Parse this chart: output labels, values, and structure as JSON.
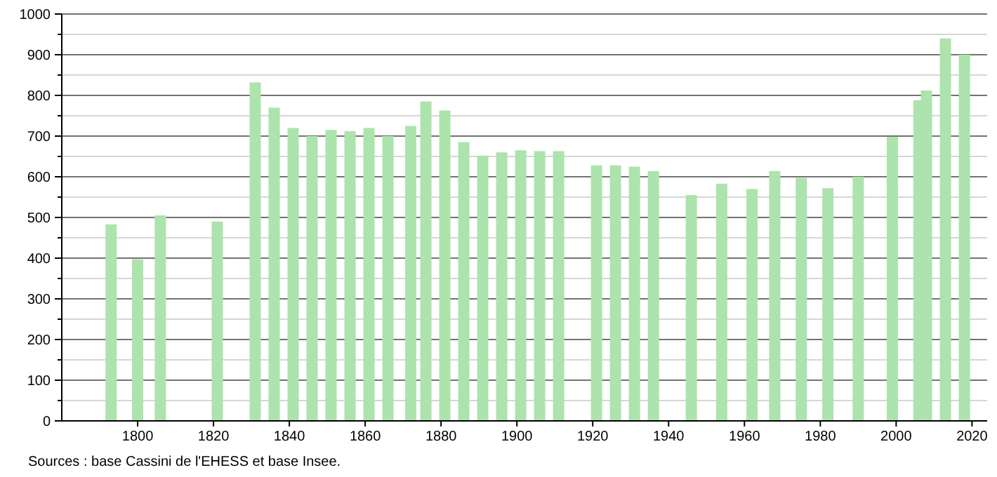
{
  "chart_data": {
    "type": "bar",
    "x": [
      1793,
      1800,
      1806,
      1821,
      1831,
      1836,
      1841,
      1846,
      1851,
      1856,
      1861,
      1866,
      1872,
      1876,
      1881,
      1886,
      1891,
      1896,
      1901,
      1906,
      1911,
      1921,
      1926,
      1931,
      1936,
      1946,
      1954,
      1962,
      1968,
      1975,
      1982,
      1990,
      1999,
      2006,
      2008,
      2013,
      2018
    ],
    "values": [
      483,
      397,
      505,
      490,
      832,
      770,
      720,
      700,
      715,
      712,
      720,
      700,
      725,
      785,
      763,
      685,
      652,
      660,
      665,
      663,
      663,
      628,
      628,
      625,
      614,
      555,
      583,
      570,
      614,
      597,
      572,
      600,
      698,
      788,
      812,
      940,
      900
    ],
    "color": "#ade3ad",
    "xlim": [
      1780,
      2024
    ],
    "xticks": [
      1800,
      1820,
      1840,
      1860,
      1880,
      1900,
      1920,
      1940,
      1960,
      1980,
      2000,
      2020
    ],
    "ylim": [
      0,
      1000
    ],
    "yticks": [
      0,
      {
        "value": 50,
        "label": null
      },
      100,
      {
        "value": 150,
        "label": null
      },
      200,
      {
        "value": 250,
        "label": null
      },
      300,
      {
        "value": 350,
        "label": null
      },
      400,
      {
        "value": 450,
        "label": null
      },
      500,
      {
        "value": 550,
        "label": null
      },
      600,
      {
        "value": 650,
        "label": null
      },
      700,
      {
        "value": 750,
        "label": null
      },
      800,
      {
        "value": 850,
        "label": null
      },
      900,
      {
        "value": 950,
        "label": null
      },
      1000
    ],
    "grid": true,
    "annotations": [
      "Sources : base Cassini de l'EHESS et base Insee."
    ]
  }
}
